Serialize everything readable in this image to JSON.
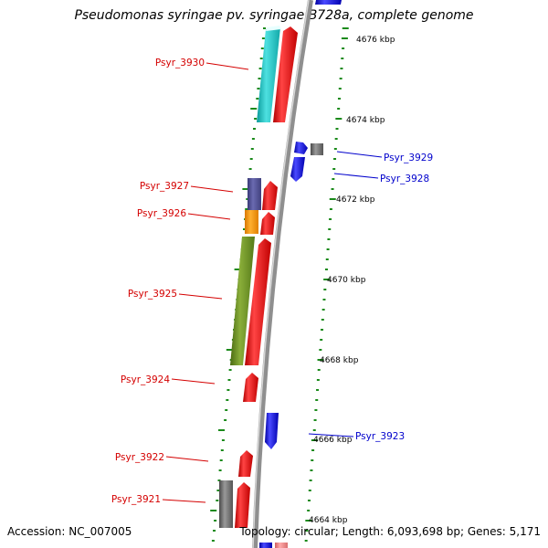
{
  "title": "Pseudomonas syringae pv. syringae B728a, complete genome",
  "footer": {
    "accession": "Accession: NC_007005",
    "summary": "Topology: circular; Length: 6,093,698 bp; Genes: 5,171"
  },
  "diagram": {
    "backbone_color": "#8f8f8f",
    "tick_color": "#1a8a1a",
    "coordinate_labels": [
      {
        "name": "kbp-4676",
        "text": "4676 kbp"
      },
      {
        "name": "kbp-4674",
        "text": "4674 kbp"
      },
      {
        "name": "kbp-4672",
        "text": "4672 kbp"
      },
      {
        "name": "kbp-4670",
        "text": "4670 kbp"
      },
      {
        "name": "kbp-4668",
        "text": "4668 kbp"
      },
      {
        "name": "kbp-4666",
        "text": "4666 kbp"
      },
      {
        "name": "kbp-4664",
        "text": "4664 kbp"
      }
    ],
    "gene_labels": [
      {
        "name": "Psyr_3930",
        "text": "Psyr_3930",
        "color": "#d40000"
      },
      {
        "name": "Psyr_3929",
        "text": "Psyr_3929",
        "color": "#0000cc"
      },
      {
        "name": "Psyr_3928",
        "text": "Psyr_3928",
        "color": "#0000cc"
      },
      {
        "name": "Psyr_3927",
        "text": "Psyr_3927",
        "color": "#d40000"
      },
      {
        "name": "Psyr_3926",
        "text": "Psyr_3926",
        "color": "#d40000"
      },
      {
        "name": "Psyr_3925",
        "text": "Psyr_3925",
        "color": "#d40000"
      },
      {
        "name": "Psyr_3924",
        "text": "Psyr_3924",
        "color": "#d40000"
      },
      {
        "name": "Psyr_3923",
        "text": "Psyr_3923",
        "color": "#0000cc"
      },
      {
        "name": "Psyr_3922",
        "text": "Psyr_3922",
        "color": "#d40000"
      },
      {
        "name": "Psyr_3921",
        "text": "Psyr_3921",
        "color": "#d40000"
      }
    ],
    "feature_colors": {
      "forward_cds": "#ff1a1a",
      "reverse_cds": "#1a1aff",
      "cyan": "#22cccc",
      "slate": "#55559a",
      "orange": "#ff9900",
      "olive": "#6b8e23",
      "gray": "#777777",
      "pink": "#f08080"
    }
  }
}
